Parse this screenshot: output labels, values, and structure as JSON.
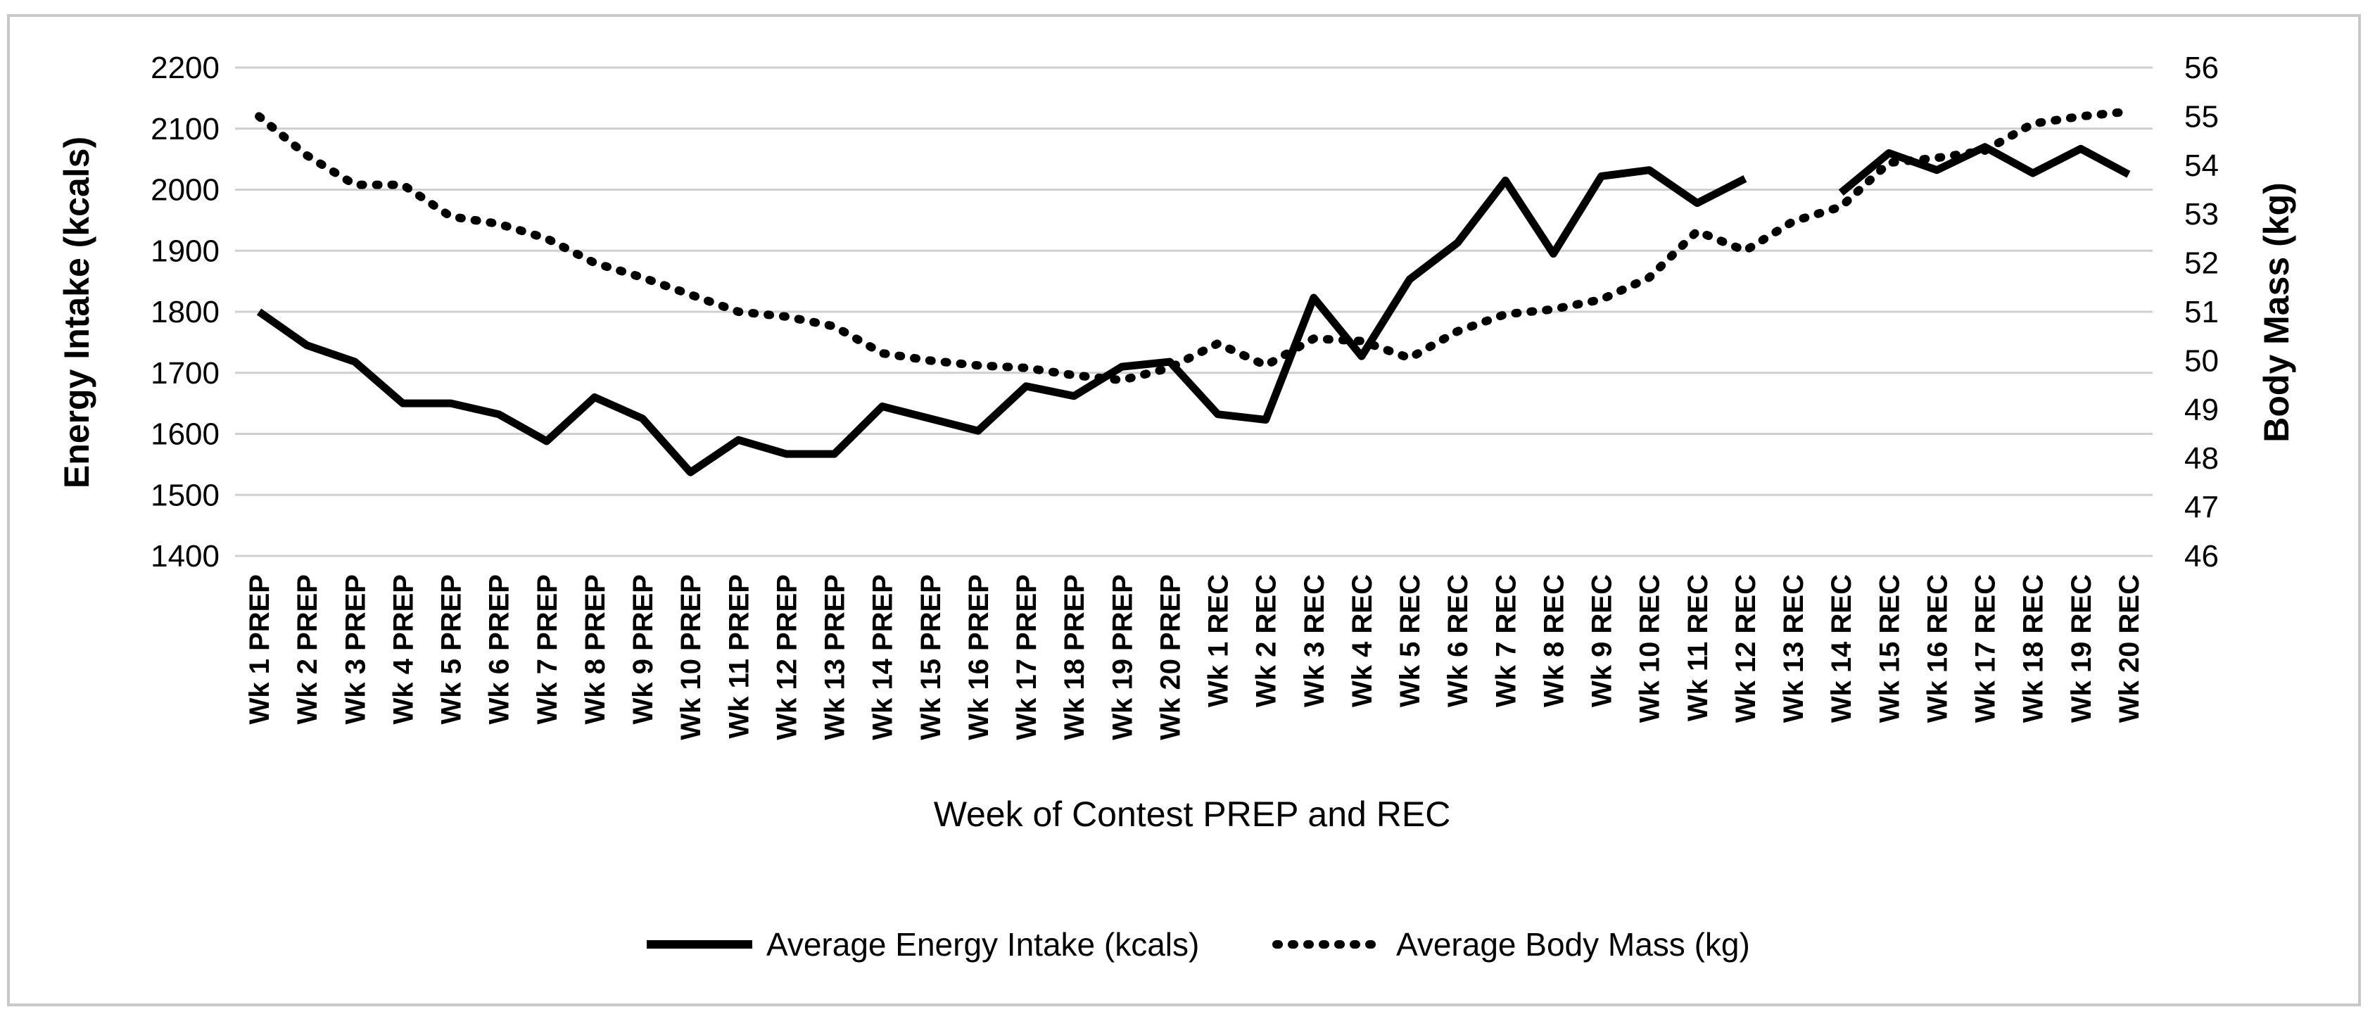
{
  "chart_data": {
    "type": "line",
    "title": "",
    "xlabel": "Week of Contest PREP and REC",
    "ylabel": "Energy Intake (kcals)",
    "y2label": "Body Mass (kg)",
    "ylim": [
      1400,
      2200
    ],
    "y2lim": [
      46,
      56
    ],
    "yticks": [
      "1400",
      "1500",
      "1600",
      "1700",
      "1800",
      "1900",
      "2000",
      "2100",
      "2200"
    ],
    "y2ticks": [
      "46",
      "47",
      "48",
      "49",
      "50",
      "51",
      "52",
      "53",
      "54",
      "55",
      "56"
    ],
    "grid": true,
    "legend_position": "bottom",
    "categories": [
      "Wk 1 PREP",
      "Wk 2 PREP",
      "Wk 3 PREP",
      "Wk 4 PREP",
      "Wk 5 PREP",
      "Wk 6 PREP",
      "Wk 7 PREP",
      "Wk 8 PREP",
      "Wk 9 PREP",
      "Wk 10 PREP",
      "Wk 11 PREP",
      "Wk 12 PREP",
      "Wk 13 PREP",
      "Wk 14 PREP",
      "Wk 15 PREP",
      "Wk 16 PREP",
      "Wk 17 PREP",
      "Wk 18 PREP",
      "Wk 19 PREP",
      "Wk 20 PREP",
      "Wk 1 REC",
      "Wk 2 REC",
      "Wk 3 REC",
      "Wk 4 REC",
      "Wk 5 REC",
      "Wk 6 REC",
      "Wk 7 REC",
      "Wk 8 REC",
      "Wk 9 REC",
      "Wk 10 REC",
      "Wk 11 REC",
      "Wk 12 REC",
      "Wk 13 REC",
      "Wk 14 REC",
      "Wk 15 REC",
      "Wk 16 REC",
      "Wk 17 REC",
      "Wk 18 REC",
      "Wk 19 REC",
      "Wk 20 REC"
    ],
    "series": [
      {
        "name": "Average Energy Intake (kcals)",
        "axis": "left",
        "style": "solid",
        "values": [
          1800,
          1745,
          1718,
          1650,
          1650,
          1632,
          1588,
          1660,
          1625,
          1537,
          1590,
          1567,
          1567,
          1645,
          1625,
          1605,
          1678,
          1662,
          1710,
          1718,
          1632,
          1623,
          1823,
          1727,
          1853,
          1913,
          2015,
          1895,
          2022,
          2032,
          1978,
          2018,
          null,
          1995,
          2060,
          2032,
          2070,
          2027,
          2067,
          2025
        ]
      },
      {
        "name": "Average Body Mass (kg)",
        "axis": "right",
        "style": "dotted",
        "values": [
          55.0,
          54.2,
          53.6,
          53.6,
          52.95,
          52.8,
          52.5,
          52.0,
          51.7,
          51.35,
          51.0,
          50.9,
          50.7,
          50.15,
          50.0,
          49.9,
          49.85,
          49.7,
          49.6,
          49.85,
          50.35,
          49.9,
          50.45,
          50.4,
          50.05,
          50.6,
          50.95,
          51.05,
          51.25,
          51.7,
          52.65,
          52.25,
          52.85,
          53.15,
          54.05,
          54.15,
          54.3,
          54.85,
          55.0,
          55.1
        ]
      }
    ]
  }
}
